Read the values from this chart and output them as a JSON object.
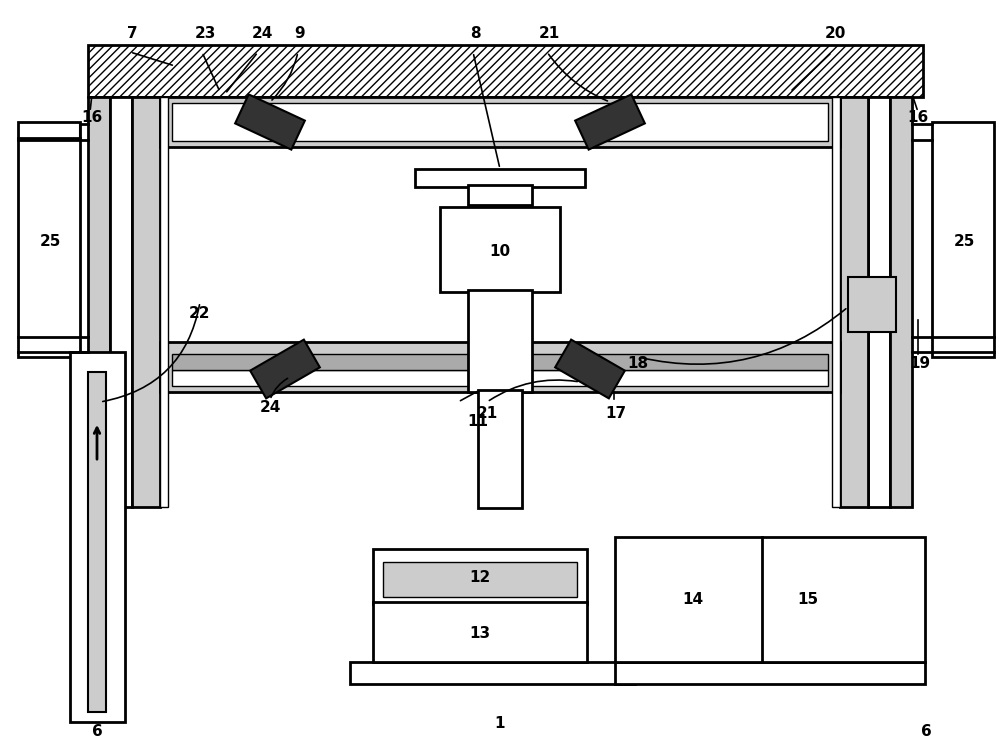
{
  "bg_color": "#ffffff",
  "lc": "#000000",
  "gray_light": "#cccccc",
  "gray_medium": "#aaaaaa",
  "gray_dark": "#333333",
  "fig_w": 10.0,
  "fig_h": 7.52,
  "dpi": 100
}
